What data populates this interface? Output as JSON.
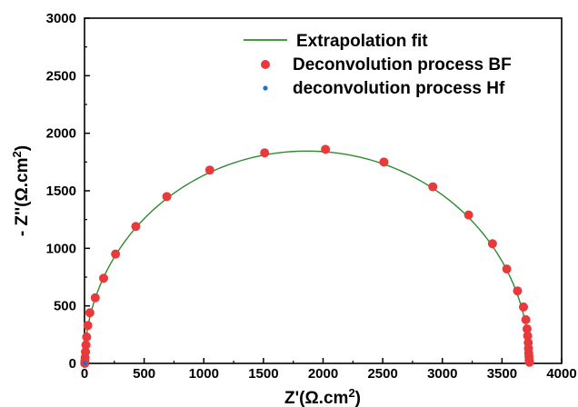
{
  "chart_data": {
    "type": "scatter",
    "xlabel_main": "Z'(Ω.cm",
    "xlabel_sup": "2",
    "xlabel_end": ")",
    "ylabel_main": "- Z''(Ω.cm",
    "ylabel_sup": "2",
    "ylabel_end": ")",
    "xlim": [
      0,
      4000
    ],
    "ylim": [
      0,
      3000
    ],
    "xticks": [
      0,
      500,
      1000,
      1500,
      2000,
      2500,
      3000,
      3500,
      4000
    ],
    "yticks": [
      0,
      500,
      1000,
      1500,
      2000,
      2500,
      3000
    ],
    "grid": false,
    "legend_position": "top-right",
    "series": [
      {
        "name": "Extrapolation fit",
        "kind": "line",
        "color": "#2e8b2e",
        "center": 1865,
        "radius": 1865,
        "peak": 1845
      },
      {
        "name": "Deconvolution process BF",
        "kind": "scatter",
        "color": "#e8393b",
        "points": [
          [
            2,
            0
          ],
          [
            3,
            20
          ],
          [
            5,
            50
          ],
          [
            8,
            100
          ],
          [
            12,
            160
          ],
          [
            18,
            230
          ],
          [
            28,
            330
          ],
          [
            45,
            440
          ],
          [
            90,
            570
          ],
          [
            160,
            740
          ],
          [
            260,
            950
          ],
          [
            430,
            1190
          ],
          [
            690,
            1450
          ],
          [
            1050,
            1680
          ],
          [
            1510,
            1830
          ],
          [
            2020,
            1860
          ],
          [
            2510,
            1750
          ],
          [
            2920,
            1535
          ],
          [
            3220,
            1290
          ],
          [
            3420,
            1040
          ],
          [
            3540,
            820
          ],
          [
            3630,
            630
          ],
          [
            3680,
            490
          ],
          [
            3700,
            380
          ],
          [
            3710,
            300
          ],
          [
            3715,
            240
          ],
          [
            3720,
            180
          ],
          [
            3722,
            130
          ],
          [
            3724,
            90
          ],
          [
            3726,
            60
          ],
          [
            3728,
            30
          ],
          [
            3730,
            10
          ]
        ]
      },
      {
        "name": "deconvolution process Hf",
        "kind": "scatter",
        "color": "#1f6fd6",
        "points": [
          [
            1,
            1
          ],
          [
            2,
            3
          ]
        ]
      }
    ]
  }
}
